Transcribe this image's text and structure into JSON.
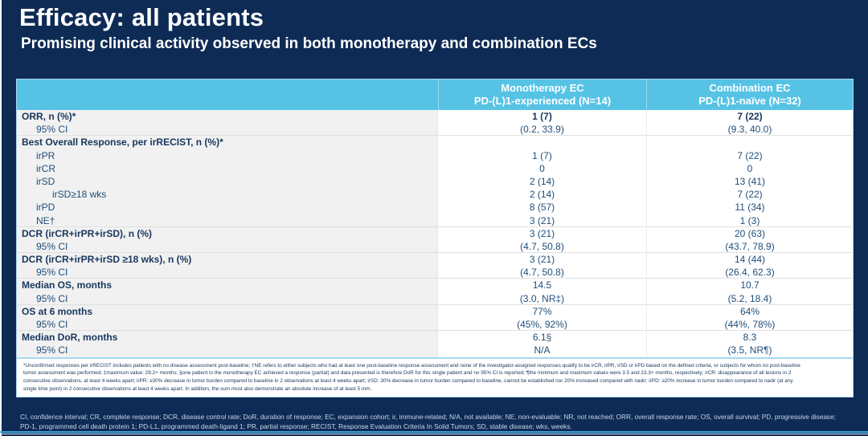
{
  "slide": {
    "title": "Efficacy: all patients",
    "subtitle": "Promising clinical activity observed in both monotherapy and combination ECs"
  },
  "colors": {
    "background": "#0e2b55",
    "header_bg": "#56c3e5",
    "header_text": "#ffffff",
    "body_text": "#1f4e79",
    "bold_text": "#17365d",
    "label_column_bg": "#f1f1f1"
  },
  "table": {
    "col_headers": [
      {
        "line1": "Monotherapy EC",
        "line2": "PD-(L)1-experienced (N=14)"
      },
      {
        "line1": "Combination EC",
        "line2": "PD-(L)1-naïve (N=32)"
      }
    ],
    "rows": [
      {
        "label": "ORR, n (%)*",
        "indent": 0,
        "bold": true,
        "mono": "1 (7)",
        "combo": "7 (22)",
        "value_bold": true,
        "sep_after": false
      },
      {
        "label": "95% CI",
        "indent": 1,
        "bold": false,
        "mono": "(0.2, 33.9)",
        "combo": "(9.3, 40.0)",
        "value_bold": false,
        "sep_after": true
      },
      {
        "label": "Best Overall Response, per irRECIST, n (%)*",
        "indent": 0,
        "bold": true,
        "mono": "",
        "combo": "",
        "value_bold": false,
        "sep_after": false
      },
      {
        "label": "irPR",
        "indent": 1,
        "bold": false,
        "mono": "1 (7)",
        "combo": "7 (22)",
        "value_bold": false,
        "sep_after": false
      },
      {
        "label": "irCR",
        "indent": 1,
        "bold": false,
        "mono": "0",
        "combo": "0",
        "value_bold": false,
        "sep_after": false
      },
      {
        "label": "irSD",
        "indent": 1,
        "bold": false,
        "mono": "2 (14)",
        "combo": "13 (41)",
        "value_bold": false,
        "sep_after": false
      },
      {
        "label": "irSD≥18 wks",
        "indent": 2,
        "bold": false,
        "mono": "2 (14)",
        "combo": "7 (22)",
        "value_bold": false,
        "sep_after": false
      },
      {
        "label": "irPD",
        "indent": 1,
        "bold": false,
        "mono": "8 (57)",
        "combo": "11 (34)",
        "value_bold": false,
        "sep_after": false
      },
      {
        "label": "NE†",
        "indent": 1,
        "bold": false,
        "mono": "3 (21)",
        "combo": "1 (3)",
        "value_bold": false,
        "sep_after": true
      },
      {
        "label": "DCR (irCR+irPR+irSD), n (%)",
        "indent": 0,
        "bold": true,
        "mono": "3 (21)",
        "combo": "20 (63)",
        "value_bold": false,
        "sep_after": false
      },
      {
        "label": "95% CI",
        "indent": 1,
        "bold": false,
        "mono": "(4.7, 50.8)",
        "combo": "(43.7, 78.9)",
        "value_bold": false,
        "sep_after": true
      },
      {
        "label": "DCR (irCR+irPR+irSD ≥18 wks), n (%)",
        "indent": 0,
        "bold": true,
        "mono": "3 (21)",
        "combo": "14 (44)",
        "value_bold": false,
        "sep_after": false
      },
      {
        "label": "95% CI",
        "indent": 1,
        "bold": false,
        "mono": "(4.7, 50.8)",
        "combo": "(26.4, 62.3)",
        "value_bold": false,
        "sep_after": true
      },
      {
        "label": "Median OS, months",
        "indent": 0,
        "bold": true,
        "mono": "14.5",
        "combo": "10.7",
        "value_bold": false,
        "sep_after": false
      },
      {
        "label": "95% CI",
        "indent": 1,
        "bold": false,
        "mono": "(3.0, NR‡)",
        "combo": "(5.2, 18.4)",
        "value_bold": false,
        "sep_after": true
      },
      {
        "label": "OS at 6 months",
        "indent": 0,
        "bold": true,
        "mono": "77%",
        "combo": "64%",
        "value_bold": false,
        "sep_after": false
      },
      {
        "label": "95% CI",
        "indent": 1,
        "bold": false,
        "mono": "(45%, 92%)",
        "combo": "(44%, 78%)",
        "value_bold": false,
        "sep_after": true
      },
      {
        "label": "Median DoR, months",
        "indent": 0,
        "bold": true,
        "mono": "6.1§",
        "combo": "8.3",
        "value_bold": false,
        "sep_after": false
      },
      {
        "label": "95% CI",
        "indent": 1,
        "bold": false,
        "mono": "N/A",
        "combo": "(3.5, NR¶)",
        "value_bold": false,
        "sep_after": false
      }
    ]
  },
  "footnote": {
    "lines": [
      "*Unconfirmed responses per irRECIST includes patients with no disease assessment post-baseline; †NE refers to either subjects who had at least one post-baseline response assessment and none of the investigator-assigned responses qualify to be irCR, irPR, irSD or irPD based on the defined criteria, or subjects for whom no post-baseline",
      "tumor assessment was performed; ‡maximum value: 29.2+ months; §one patient in the monotherapy EC achieved a response (partial) and data presented is therefore DoR for this single patient and no 95% CI is reported; ¶the minimum and maximum values were 3.5 and 23.3+ months, respectively; irCR: disappearance of all lesions in 2",
      "consecutive observations, at least 4 weeks apart; irPR: ≥30% decrease in tumor burden compared to baseline in 2 observations at least 4 weeks apart; irSD: 30% decrease in tumor burden compared to baseline, cannot be established nor 20% increased compared with nadir; irPD: ≥20% increase in tumor burden compared to nadir (at any",
      "single time point) in 2 consecutive observations at least 4 weeks apart. In addition, the sum must also demonstrate an absolute increase of at least 5 mm."
    ]
  },
  "abbreviations": {
    "lines": [
      "CI, confidence interval; CR, complete response; DCR, disease control rate; DoR, duration of response; EC, expansion cohort; ir, immune-related; N/A, not available; NE, non-evaluable; NR, not reached; ORR, overall response rate; OS, overall survival; PD, progressive disease;",
      "PD-1, programmed cell death protein 1; PD-L1, programmed death-ligand 1; PR, partial response; RECIST, Response Evaluation Criteria In Solid Tumors; SD, stable disease; wks, weeks."
    ]
  }
}
